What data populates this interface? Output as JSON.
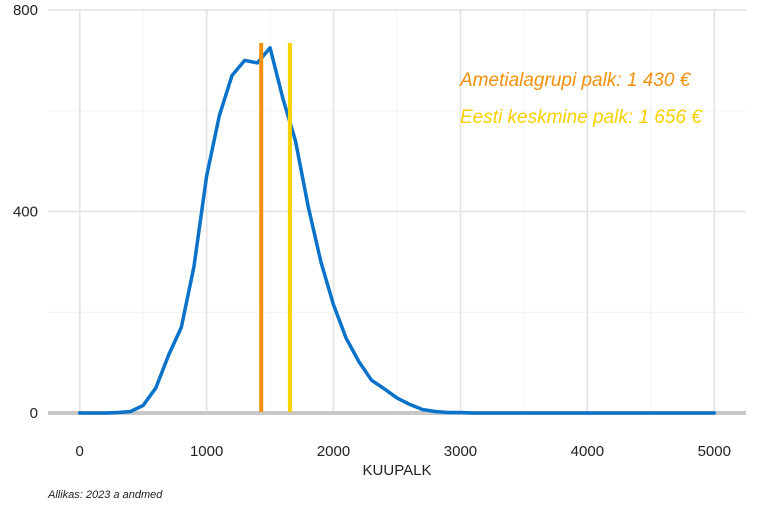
{
  "chart_data": {
    "type": "line",
    "xlabel": "KUUPALK",
    "xlim": [
      -250,
      5250
    ],
    "ylim": [
      0,
      800
    ],
    "xticks": [
      0,
      1000,
      2000,
      3000,
      4000,
      5000
    ],
    "yticks": [
      0,
      400,
      800
    ],
    "grid": true,
    "series": [
      {
        "color": "#0a72c8",
        "x": [
          0,
          100,
          200,
          300,
          400,
          500,
          600,
          700,
          800,
          900,
          1000,
          1100,
          1200,
          1300,
          1400,
          1500,
          1600,
          1700,
          1800,
          1900,
          2000,
          2100,
          2200,
          2300,
          2400,
          2500,
          2600,
          2700,
          2800,
          2900,
          3000,
          3100,
          3200,
          3400,
          3600,
          3800,
          4000,
          4200,
          4400,
          4600,
          4800,
          5000
        ],
        "y": [
          0,
          0,
          0,
          1,
          3,
          15,
          50,
          115,
          170,
          290,
          470,
          590,
          670,
          700,
          695,
          725,
          625,
          540,
          410,
          300,
          215,
          148,
          102,
          65,
          48,
          30,
          17,
          7,
          3,
          1,
          1,
          0,
          0,
          0,
          0,
          0,
          0,
          0,
          0,
          0,
          0,
          0
        ]
      }
    ],
    "vlines": [
      {
        "x": 1430,
        "color": "#f4900c",
        "label": "Ametialagrupi palk: 1 430 €"
      },
      {
        "x": 1656,
        "color": "#f9d000",
        "label": "Eesti keskmine palk: 1 656 €"
      }
    ],
    "source": "Allikas: 2023 a andmed"
  }
}
